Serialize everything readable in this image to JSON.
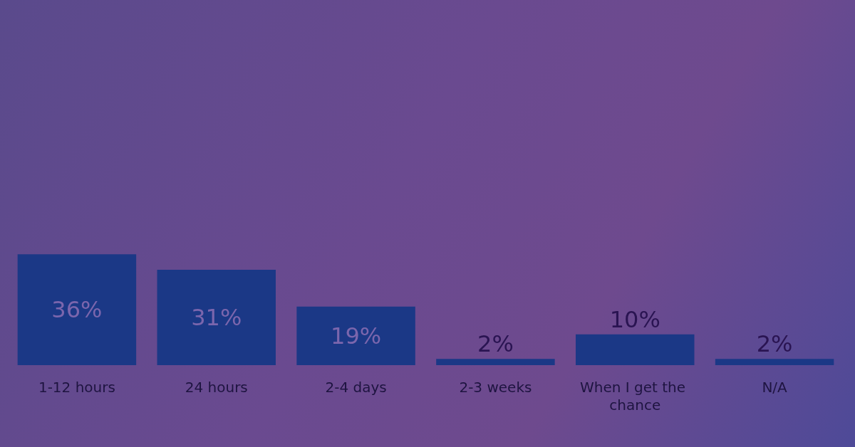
{
  "chart_data": {
    "type": "bar",
    "categories": [
      "1-12 hours",
      "24 hours",
      "2-4 days",
      "2-3 weeks",
      "When I get the chance",
      "N/A"
    ],
    "values": [
      36,
      31,
      19,
      2,
      10,
      2
    ],
    "value_labels": [
      "36%",
      "31%",
      "19%",
      "2%",
      "10%",
      "2%"
    ],
    "color": "#1b3886"
  }
}
